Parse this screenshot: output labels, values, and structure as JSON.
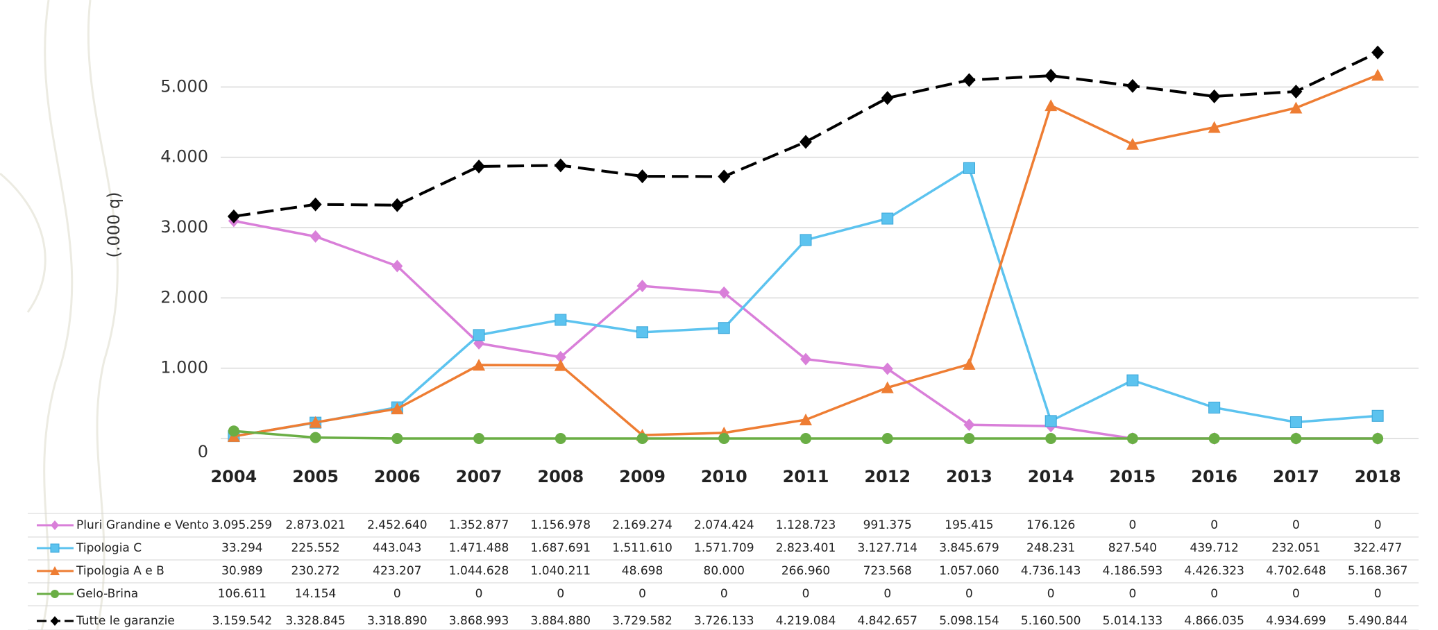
{
  "chart_data": {
    "type": "line",
    "y_label": "(.000 q)",
    "categories": [
      "2004",
      "2005",
      "2006",
      "2007",
      "2008",
      "2009",
      "2010",
      "2011",
      "2012",
      "2013",
      "2014",
      "2015",
      "2016",
      "2017",
      "2018"
    ],
    "ylim": [
      0,
      6000
    ],
    "yticks": [
      0,
      {
        "value": 1000,
        "label": "1.000"
      },
      {
        "value": 2000,
        "label": "2.000"
      },
      {
        "value": 3000,
        "label": "3.000"
      },
      {
        "value": 4000,
        "label": "4.000"
      },
      {
        "value": 5000,
        "label": "5.000"
      }
    ],
    "grid": true,
    "series": [
      {
        "name": "Pluri Grandine e Vento",
        "color": "#d97fd9",
        "marker": "diamond",
        "dash": false,
        "values": [
          3095.259,
          2873.021,
          2452.64,
          1352.877,
          1156.978,
          2169.274,
          2074.424,
          1128.723,
          991.375,
          195.415,
          176.126,
          0,
          0,
          0,
          0
        ],
        "value_labels": [
          "3.095.259",
          "2.873.021",
          "2.452.640",
          "1.352.877",
          "1.156.978",
          "2.169.274",
          "2.074.424",
          "1.128.723",
          "991.375",
          "195.415",
          "176.126",
          "0",
          "0",
          "0",
          "0"
        ]
      },
      {
        "name": "Tipologia C",
        "color": "#5cc3ef",
        "marker": "square",
        "dash": false,
        "values": [
          33.294,
          225.552,
          443.043,
          1471.488,
          1687.691,
          1511.61,
          1571.709,
          2823.401,
          3127.714,
          3845.679,
          248.231,
          827.54,
          439.712,
          232.051,
          322.477
        ],
        "value_labels": [
          "33.294",
          "225.552",
          "443.043",
          "1.471.488",
          "1.687.691",
          "1.511.610",
          "1.571.709",
          "2.823.401",
          "3.127.714",
          "3.845.679",
          "248.231",
          "827.540",
          "439.712",
          "232.051",
          "322.477"
        ]
      },
      {
        "name": "Tipologia A e B",
        "color": "#ee7d33",
        "marker": "triangle",
        "dash": false,
        "values": [
          30.989,
          230.272,
          423.207,
          1044.628,
          1040.211,
          48.698,
          80,
          266.96,
          723.568,
          1057.06,
          4736.143,
          4186.593,
          4426.323,
          4702.648,
          5168.367
        ],
        "value_labels": [
          "30.989",
          "230.272",
          "423.207",
          "1.044.628",
          "1.040.211",
          "48.698",
          "80.000",
          "266.960",
          "723.568",
          "1.057.060",
          "4.736.143",
          "4.186.593",
          "4.426.323",
          "4.702.648",
          "5.168.367"
        ]
      },
      {
        "name": "Gelo-Brina",
        "color": "#6aae45",
        "marker": "circle",
        "dash": false,
        "values": [
          106.611,
          14.154,
          0,
          0,
          0,
          0,
          0,
          0,
          0,
          0,
          0,
          0,
          0,
          0,
          0
        ],
        "value_labels": [
          "106.611",
          "14.154",
          "0",
          "0",
          "0",
          "0",
          "0",
          "0",
          "0",
          "0",
          "0",
          "0",
          "0",
          "0",
          "0"
        ]
      },
      {
        "name": "Tutte le garanzie",
        "color": "#000000",
        "marker": "diamond",
        "dash": true,
        "values": [
          3159.542,
          3328.845,
          3318.89,
          3868.993,
          3884.88,
          3729.582,
          3726.133,
          4219.084,
          4842.657,
          5098.154,
          5160.5,
          5014.133,
          4866.035,
          4934.699,
          5490.844
        ],
        "value_labels": [
          "3.159.542",
          "3.328.845",
          "3.318.890",
          "3.868.993",
          "3.884.880",
          "3.729.582",
          "3.726.133",
          "4.219.084",
          "4.842.657",
          "5.098.154",
          "5.160.500",
          "5.014.133",
          "4.866.035",
          "4.934.699",
          "5.490.844"
        ]
      }
    ]
  }
}
